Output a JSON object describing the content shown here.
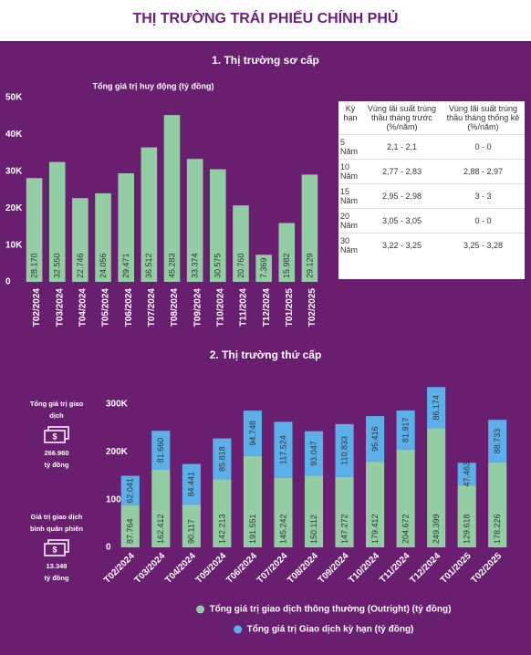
{
  "title": "THỊ TRƯỜNG TRÁI PHIẾU CHÍNH PHỦ",
  "chart_data": [
    {
      "type": "bar",
      "section": "1. Thị trường sơ cấp",
      "title": "Tổng giá trị huy động (tỷ đồng)",
      "categories": [
        "T02/2024",
        "T03/2024",
        "T04/2024",
        "T05/2024",
        "T06/2024",
        "T07/2024",
        "T08/2024",
        "T09/2024",
        "T10/2024",
        "T11/2024",
        "T12/2024",
        "T01/2025",
        "T02/2025"
      ],
      "values": [
        28170,
        32550,
        22746,
        24056,
        29471,
        36512,
        45283,
        33374,
        30575,
        20760,
        7369,
        15982,
        29129
      ],
      "value_labels": [
        "28.170",
        "32.550",
        "22.746",
        "24.056",
        "29.471",
        "36.512",
        "45.283",
        "33.374",
        "30.575",
        "20.760",
        "7.369",
        "15.982",
        "29.129"
      ],
      "color": "#93cda3",
      "ylim": [
        0,
        52000
      ],
      "yticks": [
        0,
        {
          "value": 10000,
          "label": "10K"
        },
        {
          "value": 20000,
          "label": "20K"
        },
        {
          "value": 30000,
          "label": "30K"
        },
        {
          "value": 40000,
          "label": "40K"
        },
        {
          "value": 50000,
          "label": "50K"
        }
      ]
    },
    {
      "type": "stacked_bar",
      "section": "2. Thị trường thứ cấp",
      "categories": [
        "T02/2024",
        "T03/2024",
        "T04/2024",
        "T05/2024",
        "T06/2024",
        "T07/2024",
        "T08/2024",
        "T09/2024",
        "T10/2024",
        "T11/2024",
        "T12/2024",
        "T01/2025",
        "T02/2025"
      ],
      "series": [
        {
          "name": "Tổng giá trị giao dịch thông thường (Outright) (tỷ đồng)",
          "color": "#93cda3",
          "values": [
            87764,
            162412,
            90117,
            142213,
            191551,
            145242,
            150112,
            147272,
            179412,
            204672,
            249399,
            129618,
            178226
          ],
          "value_labels": [
            "87.764",
            "162.412",
            "90.117",
            "142.213",
            "191.551",
            "145.242",
            "150.112",
            "147.272",
            "179.412",
            "204.672",
            "249.399",
            "129.618",
            "178.226"
          ]
        },
        {
          "name": "Tổng giá trị Giao dịch kỳ hạn (tỷ đồng)",
          "color": "#5cb0ea",
          "values": [
            62041,
            81660,
            84441,
            85818,
            94748,
            117524,
            93047,
            110833,
            95416,
            81917,
            86174,
            47463,
            88733
          ],
          "value_labels": [
            "62.041",
            "81.660",
            "84.441",
            "85.818",
            "94.748",
            "117.524",
            "93.047",
            "110.833",
            "95.416",
            "81.917",
            "86.174",
            "47.463",
            "88.733"
          ]
        }
      ],
      "ylim": [
        0,
        340000
      ],
      "yticks": [
        0,
        {
          "value": 100000,
          "label": "100K"
        },
        {
          "value": 200000,
          "label": "200K"
        },
        {
          "value": 300000,
          "label": "300K"
        }
      ],
      "legend": "bottom"
    }
  ],
  "table": {
    "header": [
      "Kỳ hạn",
      "Vùng lãi suất trúng thầu tháng trước (%/năm)",
      "Vùng lãi suất trúng thầu tháng thống kê (%/năm)"
    ],
    "rows": [
      [
        "5 Năm",
        "2,1 - 2,1",
        "0 - 0"
      ],
      [
        "10 Năm",
        "2,77 - 2,83",
        "2,88 - 2,97"
      ],
      [
        "15 Năm",
        "2,95 - 2,98",
        "3 - 3"
      ],
      [
        "20 Năm",
        "3,05 - 3,05",
        "0 - 0"
      ],
      [
        "30 Năm",
        "3,22 - 3,25",
        "3,25 - 3,28"
      ]
    ]
  },
  "stats": [
    {
      "label": "Tổng giá trị giao dịch",
      "value": "266.960",
      "unit": "tỷ đồng"
    },
    {
      "label": "Giá trị giao dịch bình quân phiên",
      "value": "13.348",
      "unit": "tỷ đồng"
    }
  ]
}
